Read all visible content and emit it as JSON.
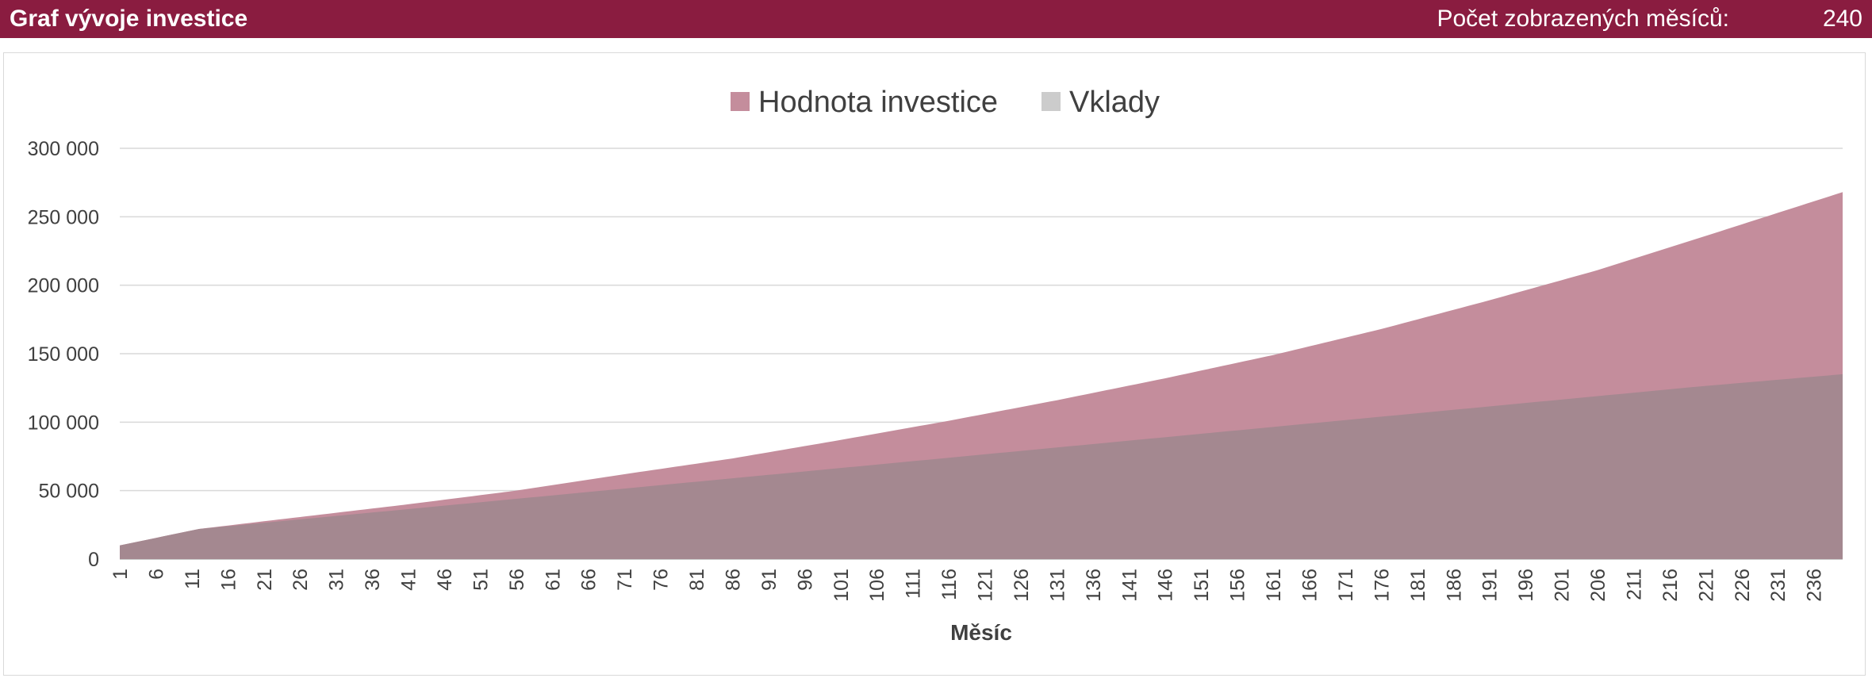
{
  "header": {
    "title": "Graf vývoje investice",
    "months_label": "Počet zobrazených měsíců:",
    "months_value": "240"
  },
  "chart_data": {
    "type": "area",
    "title": "",
    "xlabel": "Měsíc",
    "ylabel": "",
    "x_range": [
      1,
      240
    ],
    "x_tick_step": 5,
    "ylim": [
      0,
      300000
    ],
    "y_ticks": [
      {
        "value": 0,
        "label": "0"
      },
      {
        "value": 50000,
        "label": "50 000"
      },
      {
        "value": 100000,
        "label": "100 000"
      },
      {
        "value": 150000,
        "label": "150 000"
      },
      {
        "value": 200000,
        "label": "200 000"
      },
      {
        "value": 250000,
        "label": "250 000"
      },
      {
        "value": 300000,
        "label": "300 000"
      }
    ],
    "grid": true,
    "legend_position": "top",
    "series": [
      {
        "name": "Hodnota investice",
        "color": "#c48d9c",
        "points": [
          [
            1,
            10000
          ],
          [
            12,
            22000
          ],
          [
            20,
            27000
          ],
          [
            41,
            40000
          ],
          [
            56,
            50000
          ],
          [
            71,
            62000
          ],
          [
            86,
            73500
          ],
          [
            101,
            87000
          ],
          [
            116,
            101000
          ],
          [
            131,
            116000
          ],
          [
            146,
            132000
          ],
          [
            161,
            149000
          ],
          [
            176,
            168000
          ],
          [
            191,
            189000
          ],
          [
            206,
            211000
          ],
          [
            221,
            236000
          ],
          [
            240,
            268000
          ]
        ]
      },
      {
        "name": "Vklady",
        "color": "#a48890",
        "points": [
          [
            1,
            10000
          ],
          [
            12,
            22000
          ],
          [
            20,
            26000
          ],
          [
            40,
            36000
          ],
          [
            60,
            46000
          ],
          [
            80,
            56000
          ],
          [
            100,
            66000
          ],
          [
            120,
            76000
          ],
          [
            140,
            86000
          ],
          [
            160,
            96000
          ],
          [
            180,
            106000
          ],
          [
            200,
            116000
          ],
          [
            220,
            126000
          ],
          [
            240,
            135000
          ]
        ]
      }
    ]
  }
}
